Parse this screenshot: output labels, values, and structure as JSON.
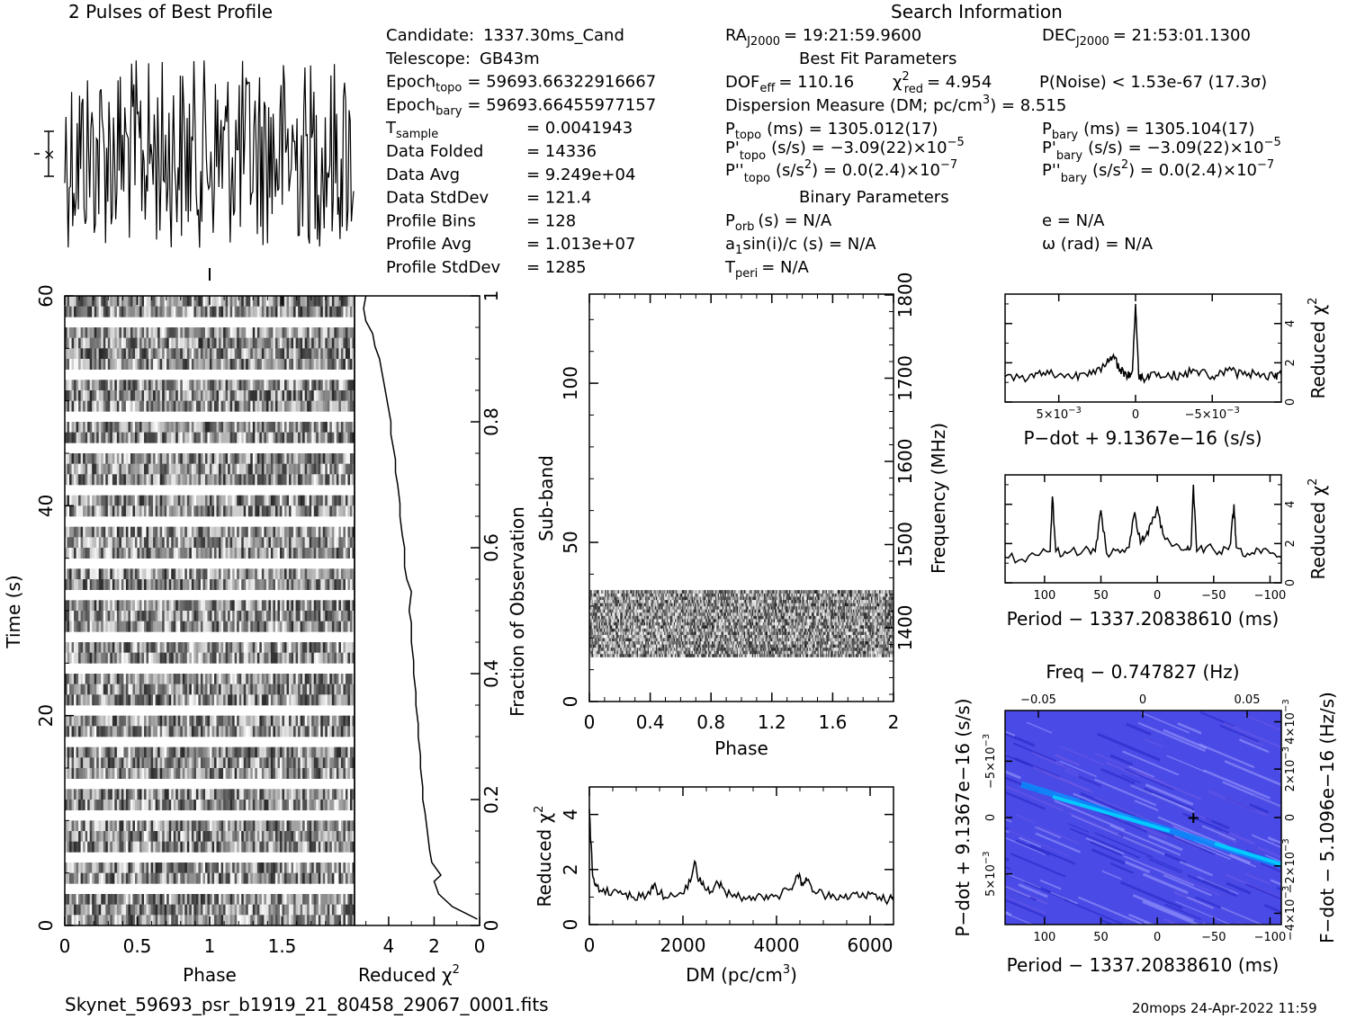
{
  "title": "2 Pulses of Best Profile",
  "search_title": "Search Information",
  "footer_left": "Skynet_59693_psr_b1919_21_80458_29067_0001.fits",
  "footer_right": "20mops 24-Apr-2022 11:59",
  "info": {
    "col1": [
      {
        "label": "Candidate:",
        "value": "1337.30ms_Cand"
      },
      {
        "label": "Telescope:",
        "value": "GB43m"
      },
      {
        "label": "Epoch",
        "sub": "topo",
        "value": "= 59693.66322916667"
      },
      {
        "label": "Epoch",
        "sub": "bary",
        "value": "= 59693.66455977157"
      },
      {
        "label": "T",
        "sub": "sample",
        "value": "=   0.0041943"
      },
      {
        "label": "Data Folded",
        "value": "=   14336"
      },
      {
        "label": "Data Avg",
        "value": "=   9.249e+04"
      },
      {
        "label": "Data StdDev",
        "value": "=   121.4"
      },
      {
        "label": "Profile Bins",
        "value": "=   128"
      },
      {
        "label": "Profile Avg",
        "value": "=   1.013e+07"
      },
      {
        "label": "Profile StdDev",
        "value": "=   1285"
      }
    ],
    "ra": "RA",
    "ra_sub": "J2000",
    "ra_value": "= 19:21:59.9600",
    "dec": "DEC",
    "dec_sub": "J2000",
    "dec_value": "= 21:53:01.1300",
    "best_fit_title": "Best Fit Parameters",
    "dof": "DOF",
    "dof_sub": "eff",
    "dof_value": "= 110.16",
    "chi": "χ",
    "chi_sup": "2",
    "chi_sub": "red",
    "chi_value": "= 4.954",
    "pnoise": "P(Noise) < 1.53e-67   (17.3σ)",
    "dm_text": "Dispersion Measure (DM; pc/cm",
    "dm_sup": "3",
    "dm_value": ") = 8.515",
    "ptopo": "P",
    "ptopo_sub": "topo",
    "ptopo_value": "(ms)  =   1305.012(17)",
    "pbary": "P",
    "pbary_sub": "bary",
    "pbary_value": "(ms)  =   1305.104(17)",
    "pdtopo": "P'",
    "pdtopo_sub": "topo",
    "pdtopo_value": "(s/s) = −3.09(22)×10",
    "pdtopo_exp": "−5",
    "pdbary": "P'",
    "pdbary_sub": "bary",
    "pdbary_value": "(s/s) = −3.09(22)×10",
    "pdbary_exp": "−5",
    "pddtopo": "P''",
    "pddtopo_sub": "topo",
    "pddtopo_value": "(s/s",
    "pddtopo_sup": "2",
    "pddtopo_value2": ") = 0.0(2.4)×10",
    "pddtopo_exp": "−7",
    "pddbary": "P''",
    "pddbary_sub": "bary",
    "pddbary_value": "(s/s",
    "pddbary_sup": "2",
    "pddbary_value2": ") = 0.0(2.4)×10",
    "pddbary_exp": "−7",
    "binary_title": "Binary Parameters",
    "porb": "P",
    "porb_sub": "orb",
    "porb_value": "(s) = N/A",
    "e_value": "e = N/A",
    "a1": "a",
    "a1_sub": "1",
    "a1_value": "sin(i)/c (s) = N/A",
    "omega_value": "ω (rad) = N/A",
    "tperi": "T",
    "tperi_sub": "peri",
    "tperi_value": "= N/A"
  },
  "chart_data": [
    {
      "id": "profile",
      "type": "line",
      "title": "2 Pulses of Best Profile",
      "x_range": [
        0,
        2
      ],
      "description_values": "noise-like profile, 2 pulses, 128 bins per pulse"
    },
    {
      "id": "time_phase",
      "type": "heatmap",
      "xlabel": "Phase",
      "ylabel": "Time (s)",
      "x_ticks": [
        "0",
        "0.5",
        "1",
        "1.5"
      ],
      "y_ticks": [
        "0",
        "20",
        "40",
        "60"
      ],
      "xlim": [
        0,
        2
      ],
      "ylim": [
        0,
        60
      ]
    },
    {
      "id": "chi_vs_time",
      "type": "line",
      "xlabel": "Reduced χ",
      "xlabel_sup": "2",
      "ylabel": "Fraction of Observation",
      "x_ticks": [
        "4",
        "2",
        "0"
      ],
      "y_ticks": [
        "0",
        "0.2",
        "0.4",
        "0.6",
        "0.8",
        "1"
      ],
      "xlim": [
        5.5,
        0
      ],
      "ylim": [
        0,
        1
      ],
      "x": [
        0.1,
        1.2,
        1.8,
        2.0,
        1.7,
        2.1,
        2.2,
        2.3,
        2.4,
        2.5,
        2.5,
        2.6,
        2.6,
        2.7,
        2.7,
        2.8,
        2.8,
        2.9,
        2.9,
        3.0,
        3.0,
        3.1,
        3.0,
        3.2,
        3.3,
        3.3,
        3.4,
        3.5,
        3.5,
        3.6,
        3.7,
        3.7,
        3.8,
        3.9,
        3.9,
        4.0,
        4.1,
        4.2,
        4.3,
        4.4,
        4.6,
        4.7,
        5.0,
        5.1,
        5.0
      ],
      "y": [
        0.01,
        0.03,
        0.05,
        0.07,
        0.08,
        0.1,
        0.12,
        0.15,
        0.18,
        0.2,
        0.22,
        0.25,
        0.27,
        0.3,
        0.32,
        0.35,
        0.37,
        0.4,
        0.42,
        0.45,
        0.48,
        0.5,
        0.53,
        0.55,
        0.57,
        0.6,
        0.62,
        0.65,
        0.67,
        0.7,
        0.72,
        0.74,
        0.76,
        0.78,
        0.8,
        0.82,
        0.84,
        0.86,
        0.88,
        0.9,
        0.92,
        0.94,
        0.96,
        0.98,
        1.0
      ]
    },
    {
      "id": "subband_phase",
      "type": "heatmap",
      "xlabel": "Phase",
      "ylabel": "Sub-band",
      "ylabel2": "Frequency (MHz)",
      "x_ticks": [
        "0",
        "0.4",
        "0.8",
        "1.2",
        "1.6",
        "2"
      ],
      "y_ticks": [
        "0",
        "50",
        "100"
      ],
      "y2_ticks": [
        "1400",
        "1500",
        "1600",
        "1700",
        "1800"
      ],
      "xlim": [
        0,
        2
      ],
      "ylim": [
        0,
        128
      ],
      "filled_subbands": [
        14,
        35
      ]
    },
    {
      "id": "chi_vs_dm",
      "type": "line",
      "xlabel": "DM (pc/cm",
      "xlabel_sup": "3",
      "xlabel_end": ")",
      "ylabel": "Reduced χ",
      "ylabel_sup": "2",
      "x_ticks": [
        "0",
        "2000",
        "4000",
        "6000"
      ],
      "y_ticks": [
        "0",
        "2",
        "4"
      ],
      "xlim": [
        0,
        6500
      ],
      "ylim": [
        0,
        5
      ],
      "x": [
        0,
        30,
        80,
        150,
        300,
        500,
        700,
        900,
        1100,
        1300,
        1400,
        1500,
        1700,
        1900,
        2100,
        2250,
        2350,
        2450,
        2600,
        2750,
        2900,
        3100,
        3300,
        3500,
        3700,
        3900,
        4100,
        4300,
        4450,
        4550,
        4650,
        4800,
        5000,
        5200,
        5400,
        5600,
        5800,
        6000,
        6200,
        6400,
        6500
      ],
      "y": [
        4.2,
        3.0,
        1.7,
        1.4,
        1.3,
        1.2,
        1.1,
        1.0,
        1.0,
        1.1,
        1.5,
        1.1,
        1.0,
        1.1,
        1.3,
        2.3,
        1.6,
        1.4,
        1.2,
        1.5,
        1.2,
        1.1,
        1.0,
        1.0,
        1.0,
        1.1,
        1.1,
        1.3,
        1.8,
        1.5,
        1.6,
        1.2,
        1.1,
        1.1,
        1.0,
        1.1,
        1.0,
        1.1,
        1.0,
        0.9,
        1.0
      ]
    },
    {
      "id": "chi_vs_pdot",
      "type": "line",
      "xlabel": "P−dot + 9.1367e−16 (s/s)",
      "ylabel": "Reduced χ",
      "ylabel_sup": "2",
      "x_ticks": [
        "5×10",
        "0",
        "−5×10"
      ],
      "x_tick_exp": "−3",
      "y_ticks": [
        "0",
        "2",
        "4"
      ],
      "xlim": [
        0.0085,
        -0.0095
      ],
      "ylim": [
        0,
        5.5
      ],
      "x": [
        0.0085,
        0.007,
        0.006,
        0.005,
        0.004,
        0.003,
        0.002,
        0.0015,
        0.001,
        0.0005,
        0.0002,
        0.0,
        -0.0002,
        -0.0005,
        -0.001,
        -0.002,
        -0.003,
        -0.004,
        -0.005,
        -0.006,
        -0.007,
        -0.008,
        -0.009,
        -0.0095
      ],
      "y": [
        1.3,
        1.2,
        1.5,
        1.4,
        1.3,
        1.6,
        1.8,
        2.3,
        1.7,
        1.3,
        1.6,
        5.0,
        1.4,
        1.2,
        1.5,
        1.3,
        1.4,
        1.6,
        1.3,
        1.6,
        1.4,
        1.5,
        1.3,
        1.4
      ]
    },
    {
      "id": "chi_vs_period",
      "type": "line",
      "xlabel": "Period − 1337.20838610 (ms)",
      "ylabel": "Reduced χ",
      "ylabel_sup": "2",
      "x_ticks": [
        "100",
        "50",
        "0",
        "−50",
        "−100"
      ],
      "y_ticks": [
        "0",
        "2",
        "4"
      ],
      "xlim": [
        135,
        -110
      ],
      "ylim": [
        0,
        5.5
      ],
      "x": [
        135,
        120,
        105,
        95,
        93,
        90,
        80,
        65,
        55,
        50,
        45,
        35,
        25,
        20,
        15,
        10,
        5,
        0,
        -5,
        -15,
        -25,
        -30,
        -32,
        -35,
        -45,
        -55,
        -65,
        -68,
        -70,
        -80,
        -90,
        -100,
        -110
      ],
      "y": [
        1.3,
        1.2,
        1.4,
        1.6,
        4.4,
        1.6,
        1.5,
        1.7,
        1.6,
        3.7,
        1.5,
        1.7,
        1.8,
        3.6,
        2.0,
        2.4,
        3.0,
        3.9,
        2.5,
        1.9,
        1.7,
        1.9,
        5.0,
        1.6,
        1.9,
        1.6,
        2.0,
        4.0,
        1.8,
        1.5,
        1.7,
        1.5,
        1.3
      ]
    },
    {
      "id": "p_pdot_plane",
      "type": "heatmap",
      "title": "Freq − 0.747827 (Hz)",
      "xlabel": "Period − 1337.20838610 (ms)",
      "ylabel": "P−dot + 9.1367e−16 (s/s)",
      "ylabel2": "F−dot − 5.1096e−16 (Hz/s)",
      "x_ticks": [
        "100",
        "50",
        "0",
        "−50",
        "−100"
      ],
      "top_ticks": [
        "−0.05",
        "0",
        "0.05"
      ],
      "y_ticks": [
        "−5×10",
        "0",
        "5×10"
      ],
      "y_tick_exp": "−3",
      "y2_ticks": [
        "4×10",
        "2×10",
        "0",
        "−2×10",
        "−4×10"
      ],
      "y2_tick_exp": "−3",
      "xlim": [
        135,
        -110
      ],
      "ylim": [
        -0.0095,
        0.0095
      ],
      "best": {
        "x": -32,
        "y": 0.0
      }
    }
  ]
}
